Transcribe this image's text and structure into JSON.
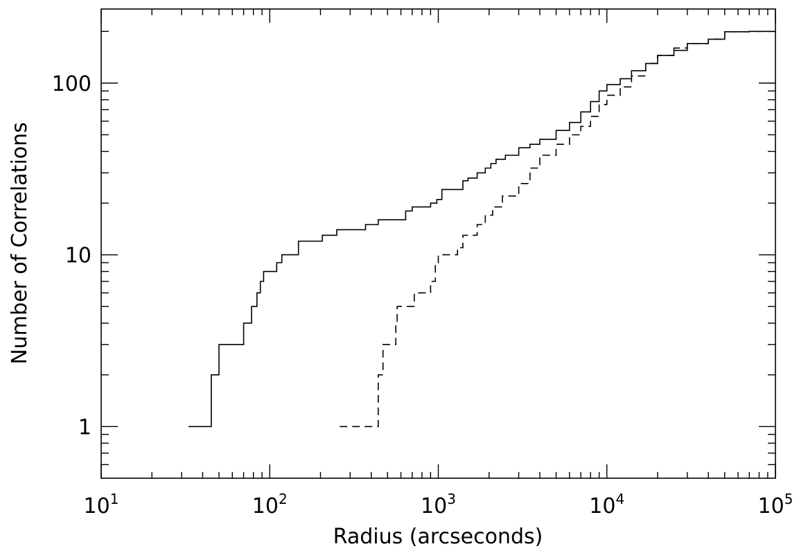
{
  "chart_data": {
    "type": "line",
    "title": "",
    "xlabel": "Radius (arcseconds)",
    "ylabel": "Number of Correlations",
    "xscale": "log",
    "yscale": "log",
    "xlim": [
      10,
      100000
    ],
    "ylim": [
      0.5,
      270
    ],
    "grid": false,
    "x_ticks": [
      {
        "base": "10",
        "exp": "1",
        "value": 10
      },
      {
        "base": "10",
        "exp": "2",
        "value": 100
      },
      {
        "base": "10",
        "exp": "3",
        "value": 1000
      },
      {
        "base": "10",
        "exp": "4",
        "value": 10000
      },
      {
        "base": "10",
        "exp": "5",
        "value": 100000
      }
    ],
    "y_ticks": [
      {
        "label": "1",
        "value": 1
      },
      {
        "label": "10",
        "value": 10
      },
      {
        "label": "100",
        "value": 100
      }
    ],
    "series": [
      {
        "style": "solid",
        "color": "#000000",
        "x": [
          33,
          45,
          47,
          50,
          70,
          78,
          84,
          88,
          92,
          110,
          118,
          127,
          148,
          205,
          250,
          370,
          440,
          640,
          700,
          900,
          980,
          1050,
          1400,
          1500,
          1700,
          1900,
          2050,
          2200,
          2500,
          3000,
          3500,
          4000,
          5000,
          6000,
          7000,
          8000,
          9000,
          10000,
          12000,
          14000,
          17000,
          20000,
          25000,
          30000,
          40000,
          50000,
          70000,
          100000
        ],
        "y": [
          1,
          2,
          2,
          3,
          4,
          5,
          6,
          7,
          8,
          9,
          10,
          10,
          12,
          13,
          14,
          15,
          16,
          18,
          19,
          20,
          21,
          24,
          27,
          28,
          30,
          32,
          34,
          36,
          38,
          42,
          44,
          47,
          53,
          59,
          68,
          78,
          90,
          98,
          106,
          118,
          130,
          145,
          155,
          170,
          180,
          199,
          200,
          200
        ]
      },
      {
        "style": "dashed",
        "color": "#000000",
        "x": [
          260,
          430,
          440,
          460,
          470,
          480,
          560,
          570,
          590,
          720,
          750,
          900,
          960,
          1000,
          1300,
          1400,
          1700,
          1900,
          2100,
          2400,
          3000,
          3500,
          4000,
          5000,
          6000,
          7000,
          8000,
          9000,
          10000,
          12000,
          14000,
          17000,
          20000,
          25000,
          30000,
          40000,
          50000,
          70000,
          100000
        ],
        "y": [
          1,
          1,
          2,
          2,
          3,
          3,
          4,
          5,
          5,
          6,
          6,
          7,
          9,
          10,
          11,
          13,
          15,
          17,
          19,
          22,
          26,
          32,
          38,
          44,
          50,
          56,
          64,
          75,
          85,
          95,
          110,
          130,
          145,
          160,
          170,
          180,
          199,
          200,
          200
        ]
      }
    ]
  }
}
